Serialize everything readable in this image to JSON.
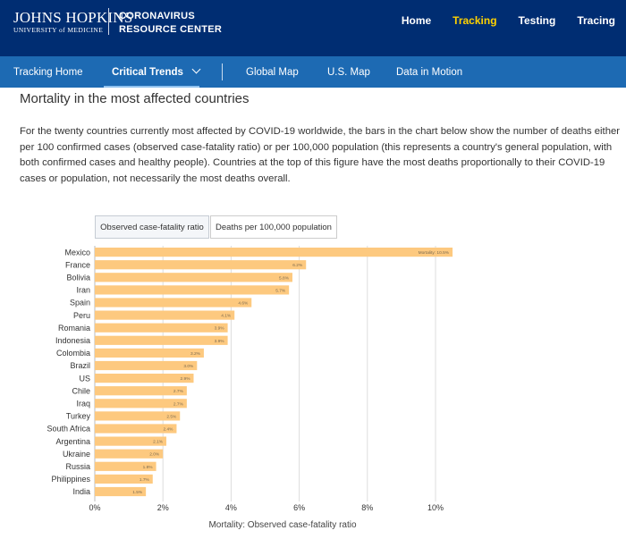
{
  "header": {
    "logo_main": "JOHNS HOPKINS",
    "logo_sub": "UNIVERSITY of MEDICINE",
    "center_line1": "CORONAVIRUS",
    "center_line2": "RESOURCE CENTER",
    "nav": [
      "Home",
      "Tracking",
      "Testing",
      "Tracing"
    ],
    "active_nav": "Tracking",
    "active_color": "#ffd200"
  },
  "subnav": {
    "items": [
      "Tracking Home",
      "Critical Trends",
      "Global Map",
      "U.S. Map",
      "Data in Motion"
    ],
    "active": "Critical Trends"
  },
  "section": {
    "title": "Mortality in the most affected countries",
    "description": "For the twenty countries currently most affected by COVID-19 worldwide, the bars in the chart below show the number of deaths either per 100 confirmed cases (observed case-fatality ratio) or per 100,000 population (this represents a country's general population, with both confirmed cases and healthy people). Countries at the top of this figure have the most deaths proportionally to their COVID-19 cases or population, not necessarily the most deaths overall."
  },
  "toggles": {
    "cfr_label": "Observed case-fatality ratio",
    "per100k_label": "Deaths per 100,000 population",
    "selected": "cfr"
  },
  "chart_data": {
    "type": "bar",
    "orientation": "horizontal",
    "categories": [
      "Mexico",
      "France",
      "Bolivia",
      "Iran",
      "Spain",
      "Peru",
      "Romania",
      "Indonesia",
      "Colombia",
      "Brazil",
      "US",
      "Chile",
      "Iraq",
      "Turkey",
      "South Africa",
      "Argentina",
      "Ukraine",
      "Russia",
      "Philippines",
      "India"
    ],
    "values": [
      10.5,
      6.2,
      5.8,
      5.7,
      4.6,
      4.1,
      3.9,
      3.9,
      3.2,
      3.0,
      2.9,
      2.7,
      2.7,
      2.5,
      2.4,
      2.1,
      2.0,
      1.8,
      1.7,
      1.5
    ],
    "data_labels": [
      "Mortality: 10.5%",
      "6.2%",
      "5.8%",
      "5.7%",
      "4.6%",
      "4.1%",
      "3.9%",
      "3.9%",
      "3.2%",
      "3.0%",
      "2.9%",
      "2.7%",
      "2.7%",
      "2.5%",
      "2.4%",
      "2.1%",
      "2.0%",
      "1.8%",
      "1.7%",
      "1.5%"
    ],
    "xlabel": "Mortality: Observed case-fatality ratio",
    "xlim": [
      0,
      11
    ],
    "xticks": [
      0,
      2,
      4,
      6,
      8,
      10
    ],
    "xtick_labels": [
      "0%",
      "2%",
      "4%",
      "6%",
      "8%",
      "10%"
    ],
    "grid": true,
    "bar_color": "#fdc97f"
  }
}
